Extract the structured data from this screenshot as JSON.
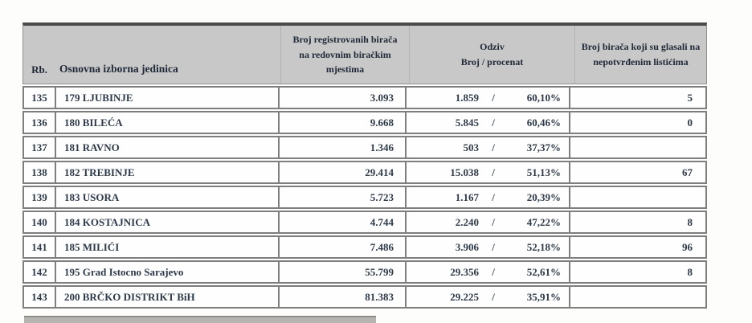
{
  "table": {
    "headers": {
      "rb": "Rb.",
      "unit": "Osnovna izborna jedinica",
      "registered": "Broj registrovanih birača na redovnim biračkim mjestima",
      "turnout_line1": "Odziv",
      "turnout_line2": "Broj / procenat",
      "unconfirmed": "Broj birača koji su glasali na nepotvrđenim listićima"
    },
    "rows": [
      {
        "rb": "135",
        "unit": "179 LJUBINJE",
        "registered": "3.093",
        "turnout_count": "1.859",
        "slash": "/",
        "turnout_pct": "60,10%",
        "unconfirmed": "5"
      },
      {
        "rb": "136",
        "unit": "180 BILEĆA",
        "registered": "9.668",
        "turnout_count": "5.845",
        "slash": "/",
        "turnout_pct": "60,46%",
        "unconfirmed": "0"
      },
      {
        "rb": "137",
        "unit": "181 RAVNO",
        "registered": "1.346",
        "turnout_count": "503",
        "slash": "/",
        "turnout_pct": "37,37%",
        "unconfirmed": ""
      },
      {
        "rb": "138",
        "unit": "182 TREBINJE",
        "registered": "29.414",
        "turnout_count": "15.038",
        "slash": "/",
        "turnout_pct": "51,13%",
        "unconfirmed": "67"
      },
      {
        "rb": "139",
        "unit": "183 USORA",
        "registered": "5.723",
        "turnout_count": "1.167",
        "slash": "/",
        "turnout_pct": "20,39%",
        "unconfirmed": ""
      },
      {
        "rb": "140",
        "unit": "184 KOSTAJNICA",
        "registered": "4.744",
        "turnout_count": "2.240",
        "slash": "/",
        "turnout_pct": "47,22%",
        "unconfirmed": "8"
      },
      {
        "rb": "141",
        "unit": "185 MILIĆI",
        "registered": "7.486",
        "turnout_count": "3.906",
        "slash": "/",
        "turnout_pct": "52,18%",
        "unconfirmed": "96"
      },
      {
        "rb": "142",
        "unit": "195 Grad Istocno Sarajevo",
        "registered": "55.799",
        "turnout_count": "29.356",
        "slash": "/",
        "turnout_pct": "52,61%",
        "unconfirmed": "8"
      },
      {
        "rb": "143",
        "unit": "200 BRČKO DISTRIKT BiH",
        "registered": "81.383",
        "turnout_count": "29.225",
        "slash": "/",
        "turnout_pct": "35,91%",
        "unconfirmed": ""
      }
    ]
  },
  "colors": {
    "header_bg": "#c8c8c8",
    "header_top_border": "#4a4a4a",
    "row_border": "#7e7e7e",
    "text": "#2e3a4a"
  }
}
